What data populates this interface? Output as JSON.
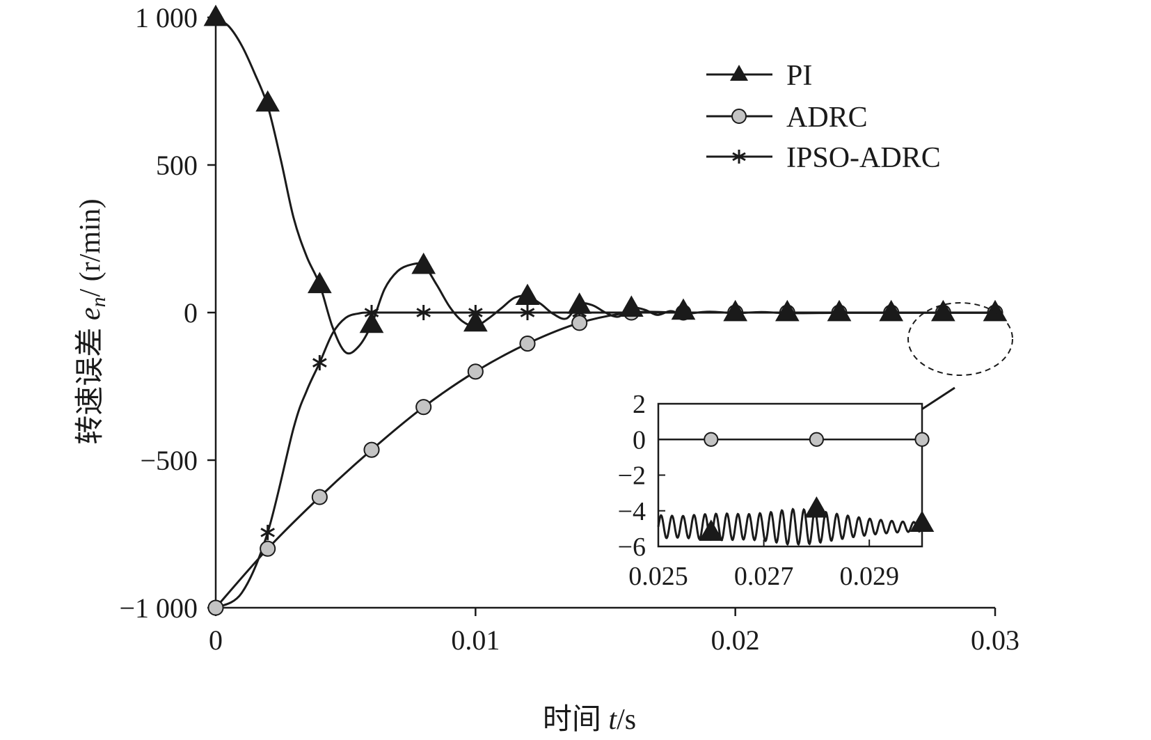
{
  "chart_data": [
    {
      "type": "line",
      "title": "",
      "xlabel_prefix": "时间 ",
      "xlabel_var": "t",
      "xlabel_suffix": "/s",
      "ylabel_prefix": "转速误差 ",
      "ylabel_var": "e",
      "ylabel_sub": "n",
      "ylabel_suffix": "/ (r/min)",
      "xlim": [
        0,
        0.03
      ],
      "ylim": [
        -1000,
        1000
      ],
      "xticks": [
        0,
        0.01,
        0.02,
        0.03
      ],
      "xtick_labels": [
        "0",
        "0.01",
        "0.02",
        "0.03"
      ],
      "yticks": [
        -1000,
        -500,
        0,
        500,
        1000
      ],
      "ytick_labels": [
        "−1 000",
        "−500",
        "0",
        "500",
        "1 000"
      ],
      "grid": false,
      "legend_position": "top-right",
      "series": [
        {
          "name": "PI",
          "marker": "triangle",
          "line_x": [
            0,
            0.0005,
            0.001,
            0.0015,
            0.002,
            0.0025,
            0.003,
            0.0035,
            0.004,
            0.0045,
            0.005,
            0.0055,
            0.006,
            0.0065,
            0.007,
            0.0075,
            0.008,
            0.0085,
            0.009,
            0.0095,
            0.01,
            0.0105,
            0.011,
            0.0115,
            0.012,
            0.0125,
            0.013,
            0.0135,
            0.014,
            0.0145,
            0.015,
            0.0155,
            0.016,
            0.0165,
            0.017,
            0.0175,
            0.018,
            0.019,
            0.02,
            0.021,
            0.022,
            0.024,
            0.026,
            0.028,
            0.03
          ],
          "line_y": [
            1000,
            970,
            905,
            810,
            700,
            520,
            320,
            190,
            95,
            -50,
            -135,
            -115,
            -40,
            80,
            140,
            162,
            160,
            95,
            20,
            -30,
            -45,
            -20,
            15,
            50,
            55,
            30,
            -5,
            -20,
            28,
            25,
            0,
            -14,
            15,
            10,
            -8,
            5,
            -4,
            3,
            -2,
            2,
            -2,
            -1,
            -1,
            -1,
            -1
          ],
          "marker_x": [
            0,
            0.002,
            0.004,
            0.006,
            0.008,
            0.01,
            0.012,
            0.014,
            0.016,
            0.018,
            0.02,
            0.022,
            0.024,
            0.026,
            0.028,
            0.03
          ],
          "marker_y": [
            1000,
            710,
            95,
            -40,
            160,
            -35,
            55,
            25,
            15,
            5,
            0,
            0,
            0,
            0,
            0,
            0
          ]
        },
        {
          "name": "ADRC",
          "marker": "circle",
          "line_x": [
            0,
            0.002,
            0.004,
            0.006,
            0.008,
            0.01,
            0.012,
            0.014,
            0.016,
            0.018,
            0.02,
            0.022,
            0.024,
            0.026,
            0.028,
            0.03
          ],
          "line_y": [
            -1000,
            -800,
            -625,
            -465,
            -320,
            -200,
            -105,
            -35,
            0,
            0,
            0,
            0,
            0,
            0,
            0,
            0
          ],
          "marker_x": [
            0,
            0.002,
            0.004,
            0.006,
            0.008,
            0.01,
            0.012,
            0.014,
            0.016,
            0.018,
            0.02,
            0.022,
            0.024,
            0.026,
            0.028,
            0.03
          ],
          "marker_y": [
            -1000,
            -800,
            -625,
            -465,
            -320,
            -200,
            -105,
            -35,
            0,
            0,
            0,
            0,
            0,
            0,
            0,
            0
          ]
        },
        {
          "name": "IPSO-ADRC",
          "marker": "asterisk",
          "line_x": [
            0,
            0.001,
            0.002,
            0.003,
            0.0035,
            0.004,
            0.0045,
            0.005,
            0.0055,
            0.006,
            0.008,
            0.01,
            0.012,
            0.014,
            0.016,
            0.018,
            0.02,
            0.022,
            0.024,
            0.026,
            0.028,
            0.03
          ],
          "line_y": [
            -1000,
            -950,
            -745,
            -390,
            -265,
            -170,
            -70,
            -18,
            -3,
            0,
            0,
            0,
            0,
            0,
            0,
            0,
            0,
            0,
            0,
            0,
            0,
            0
          ],
          "marker_x": [
            0,
            0.002,
            0.004,
            0.006,
            0.008,
            0.01,
            0.012,
            0.014,
            0.016,
            0.018,
            0.02,
            0.022,
            0.024,
            0.026,
            0.028,
            0.03
          ],
          "marker_y": [
            -1000,
            -745,
            -170,
            0,
            0,
            0,
            0,
            0,
            0,
            0,
            0,
            0,
            0,
            0,
            0,
            0
          ]
        }
      ]
    },
    {
      "type": "line",
      "role": "inset zoom of 0.025–0.030 s",
      "xlim": [
        0.025,
        0.03
      ],
      "ylim": [
        -6,
        2
      ],
      "xticks": [
        0.025,
        0.027,
        0.029
      ],
      "xtick_labels": [
        "0.025",
        "0.027",
        "0.029"
      ],
      "yticks": [
        -6,
        -4,
        -2,
        0,
        2
      ],
      "ytick_labels": [
        "−6",
        "−4",
        "−2",
        "0",
        "2"
      ],
      "series": [
        {
          "name": "PI",
          "oscillation": {
            "x_start": 0.025,
            "x_end": 0.03,
            "cycles": 24,
            "center": -4.9,
            "amplitude": [
              0.65,
              0.6,
              0.7,
              0.75,
              0.7,
              0.8,
              1.0,
              0.95,
              0.75,
              0.55,
              0.4,
              0.3,
              0.25
            ]
          },
          "marker_x": [
            0.026,
            0.028,
            0.03
          ],
          "marker_y": [
            -5.2,
            -3.9,
            -4.7
          ]
        },
        {
          "name": "ADRC",
          "marker_x": [
            0.026,
            0.028,
            0.03
          ],
          "marker_y": [
            0,
            0,
            0
          ]
        },
        {
          "name": "IPSO-ADRC",
          "marker_x": [
            0.026,
            0.028,
            0.03
          ],
          "marker_y": [
            0,
            0,
            0
          ]
        }
      ]
    }
  ]
}
